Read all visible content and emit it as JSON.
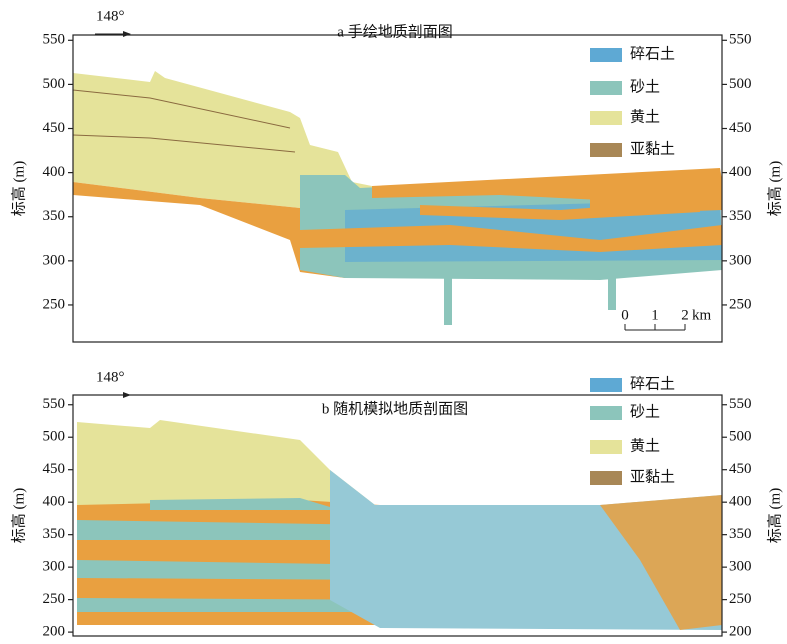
{
  "panels": [
    {
      "title": "a 手绘地质剖面图",
      "direction": "148°",
      "ylabel": "标高 (m)",
      "ylim": [
        208,
        556
      ],
      "yticks": [
        250,
        300,
        350,
        400,
        450,
        500,
        550
      ],
      "legend": [
        {
          "name": "碎石土",
          "color": "#5ea9d4"
        },
        {
          "name": "砂土",
          "color": "#8cc5bb"
        },
        {
          "name": "黄土",
          "color": "#e5e39a"
        },
        {
          "name": "亚黏土",
          "color": "#a88756"
        }
      ],
      "scale_bar": {
        "ticks": [
          0,
          1,
          2
        ],
        "unit": "km"
      }
    },
    {
      "title": "b 随机模拟地质剖面图",
      "direction": "148°",
      "ylabel": "标高 (m)",
      "ylim": [
        194,
        565
      ],
      "yticks": [
        200,
        250,
        300,
        350,
        400,
        450,
        500,
        550
      ],
      "legend": [
        {
          "name": "碎石土",
          "color": "#5ea9d4"
        },
        {
          "name": "砂土",
          "color": "#8cc5bb"
        },
        {
          "name": "黄土",
          "color": "#e5e39a"
        },
        {
          "name": "亚黏土",
          "color": "#a88756"
        }
      ]
    }
  ]
}
